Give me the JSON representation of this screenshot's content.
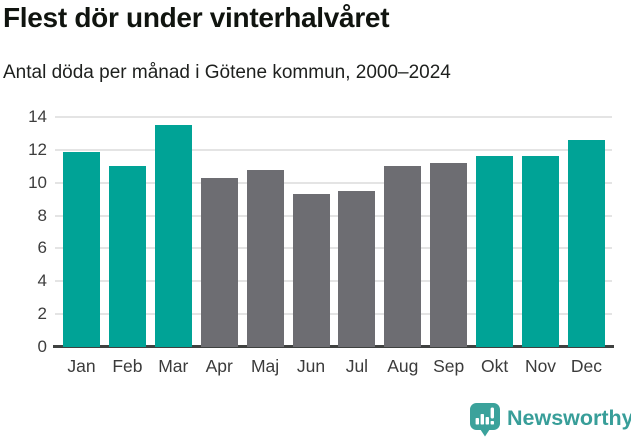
{
  "header": {
    "title": "Flest dör under vinterhalvåret",
    "subtitle": "Antal döda per månad i Götene kommun, 2000–2024"
  },
  "chart_data": {
    "type": "bar",
    "title": "Flest dör under vinterhalvåret",
    "subtitle": "Antal döda per månad i Götene kommun, 2000–2024",
    "categories": [
      "Jan",
      "Feb",
      "Mar",
      "Apr",
      "Maj",
      "Jun",
      "Jul",
      "Aug",
      "Sep",
      "Okt",
      "Nov",
      "Dec"
    ],
    "values": [
      11.9,
      11.0,
      13.5,
      10.3,
      10.8,
      9.3,
      9.5,
      11.0,
      11.2,
      11.6,
      11.6,
      12.6
    ],
    "highlighted": [
      true,
      true,
      true,
      false,
      false,
      false,
      false,
      false,
      false,
      true,
      true,
      true
    ],
    "colors": {
      "highlight": "#00a396",
      "base": "#6d6d72",
      "gridline": "#e4e4e4",
      "axis": "#3f4140"
    },
    "xlabel": "",
    "ylabel": "",
    "ylim": [
      0,
      14
    ],
    "yticks": [
      0,
      2,
      4,
      6,
      8,
      10,
      12,
      14
    ],
    "grid": true,
    "legend": "none"
  },
  "footer": {
    "brand": "Newsworthy",
    "logo_icon": "newsworthy-chart-bubble-icon",
    "brand_color": "#389e99",
    "icon_color": "#3ba29b"
  }
}
